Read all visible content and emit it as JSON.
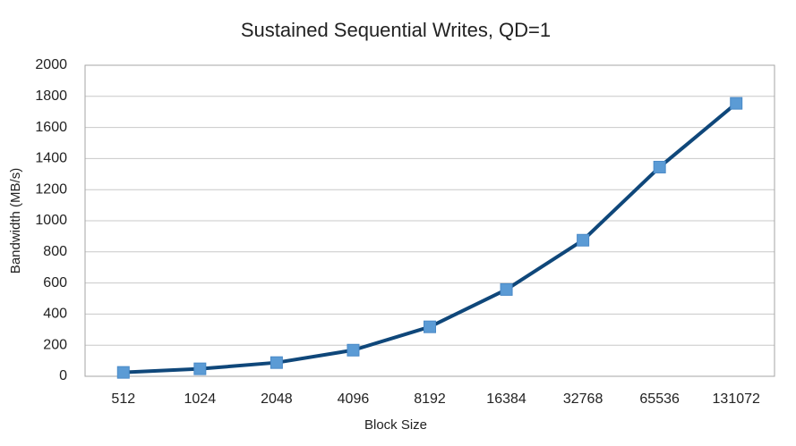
{
  "chart_data": {
    "type": "line",
    "title": "Sustained Sequential Writes, QD=1",
    "x_label": "Block Size",
    "y_label": "Bandwidth (MB/s)",
    "categories": [
      "512",
      "1024",
      "2048",
      "4096",
      "8192",
      "16384",
      "32768",
      "65536",
      "131072"
    ],
    "series": [
      {
        "name": "Bandwidth",
        "line_color": "#0f477a",
        "marker_color": "#5b9bd5",
        "values": [
          25,
          48,
          88,
          168,
          318,
          558,
          875,
          1345,
          1755
        ]
      }
    ],
    "ylim": [
      0,
      2000
    ],
    "yticks": [
      0,
      200,
      400,
      600,
      800,
      1000,
      1200,
      1400,
      1600,
      1800,
      2000
    ],
    "grid": true
  }
}
